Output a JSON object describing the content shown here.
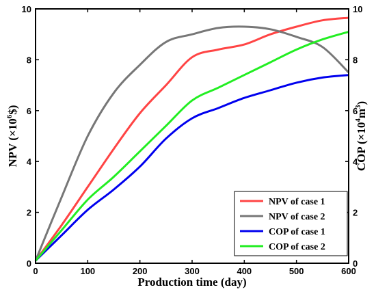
{
  "chart_data": {
    "type": "line",
    "title": "",
    "xlabel": "Production time (day)",
    "ylabel_left": {
      "prefix": "NPV (×10",
      "sup": "6",
      "suffix": "$)"
    },
    "ylabel_right": {
      "prefix": "COP (×10",
      "sup": "4",
      "mid": "m",
      "sup2": "3",
      "suffix": ")"
    },
    "xlim": [
      0,
      600
    ],
    "ylim_left": [
      0,
      10
    ],
    "ylim_right": [
      0,
      10
    ],
    "xticks": [
      0,
      100,
      200,
      300,
      400,
      500,
      600
    ],
    "yticks_left": [
      0,
      2,
      4,
      6,
      8,
      10
    ],
    "yticks_right": [
      0,
      2,
      4,
      6,
      8,
      10
    ],
    "grid": false,
    "legend_position": "bottom-right",
    "series": [
      {
        "name": "NPV of case 1",
        "axis": "left",
        "color": "#ff4444",
        "x": [
          0,
          50,
          100,
          150,
          200,
          250,
          300,
          350,
          400,
          450,
          500,
          550,
          600
        ],
        "y": [
          0.1,
          1.5,
          3.0,
          4.5,
          5.9,
          7.0,
          8.1,
          8.4,
          8.6,
          9.0,
          9.3,
          9.55,
          9.65
        ]
      },
      {
        "name": "NPV of case 2",
        "axis": "left",
        "color": "#777777",
        "x": [
          0,
          50,
          100,
          150,
          200,
          250,
          300,
          350,
          400,
          450,
          500,
          550,
          600
        ],
        "y": [
          0.1,
          2.6,
          5.0,
          6.7,
          7.8,
          8.7,
          9.0,
          9.25,
          9.3,
          9.2,
          8.9,
          8.5,
          7.5
        ]
      },
      {
        "name": "COP of case 1",
        "axis": "right",
        "color": "#0000ee",
        "x": [
          0,
          50,
          100,
          150,
          200,
          250,
          300,
          350,
          400,
          450,
          500,
          550,
          600
        ],
        "y": [
          0.1,
          1.1,
          2.1,
          2.9,
          3.8,
          4.9,
          5.7,
          6.1,
          6.5,
          6.8,
          7.1,
          7.3,
          7.4
        ]
      },
      {
        "name": "COP of case 2",
        "axis": "right",
        "color": "#22ee22",
        "x": [
          0,
          50,
          100,
          150,
          200,
          250,
          300,
          350,
          400,
          450,
          500,
          550,
          600
        ],
        "y": [
          0.1,
          1.3,
          2.5,
          3.4,
          4.4,
          5.4,
          6.4,
          6.9,
          7.4,
          7.9,
          8.4,
          8.8,
          9.1
        ]
      }
    ]
  }
}
